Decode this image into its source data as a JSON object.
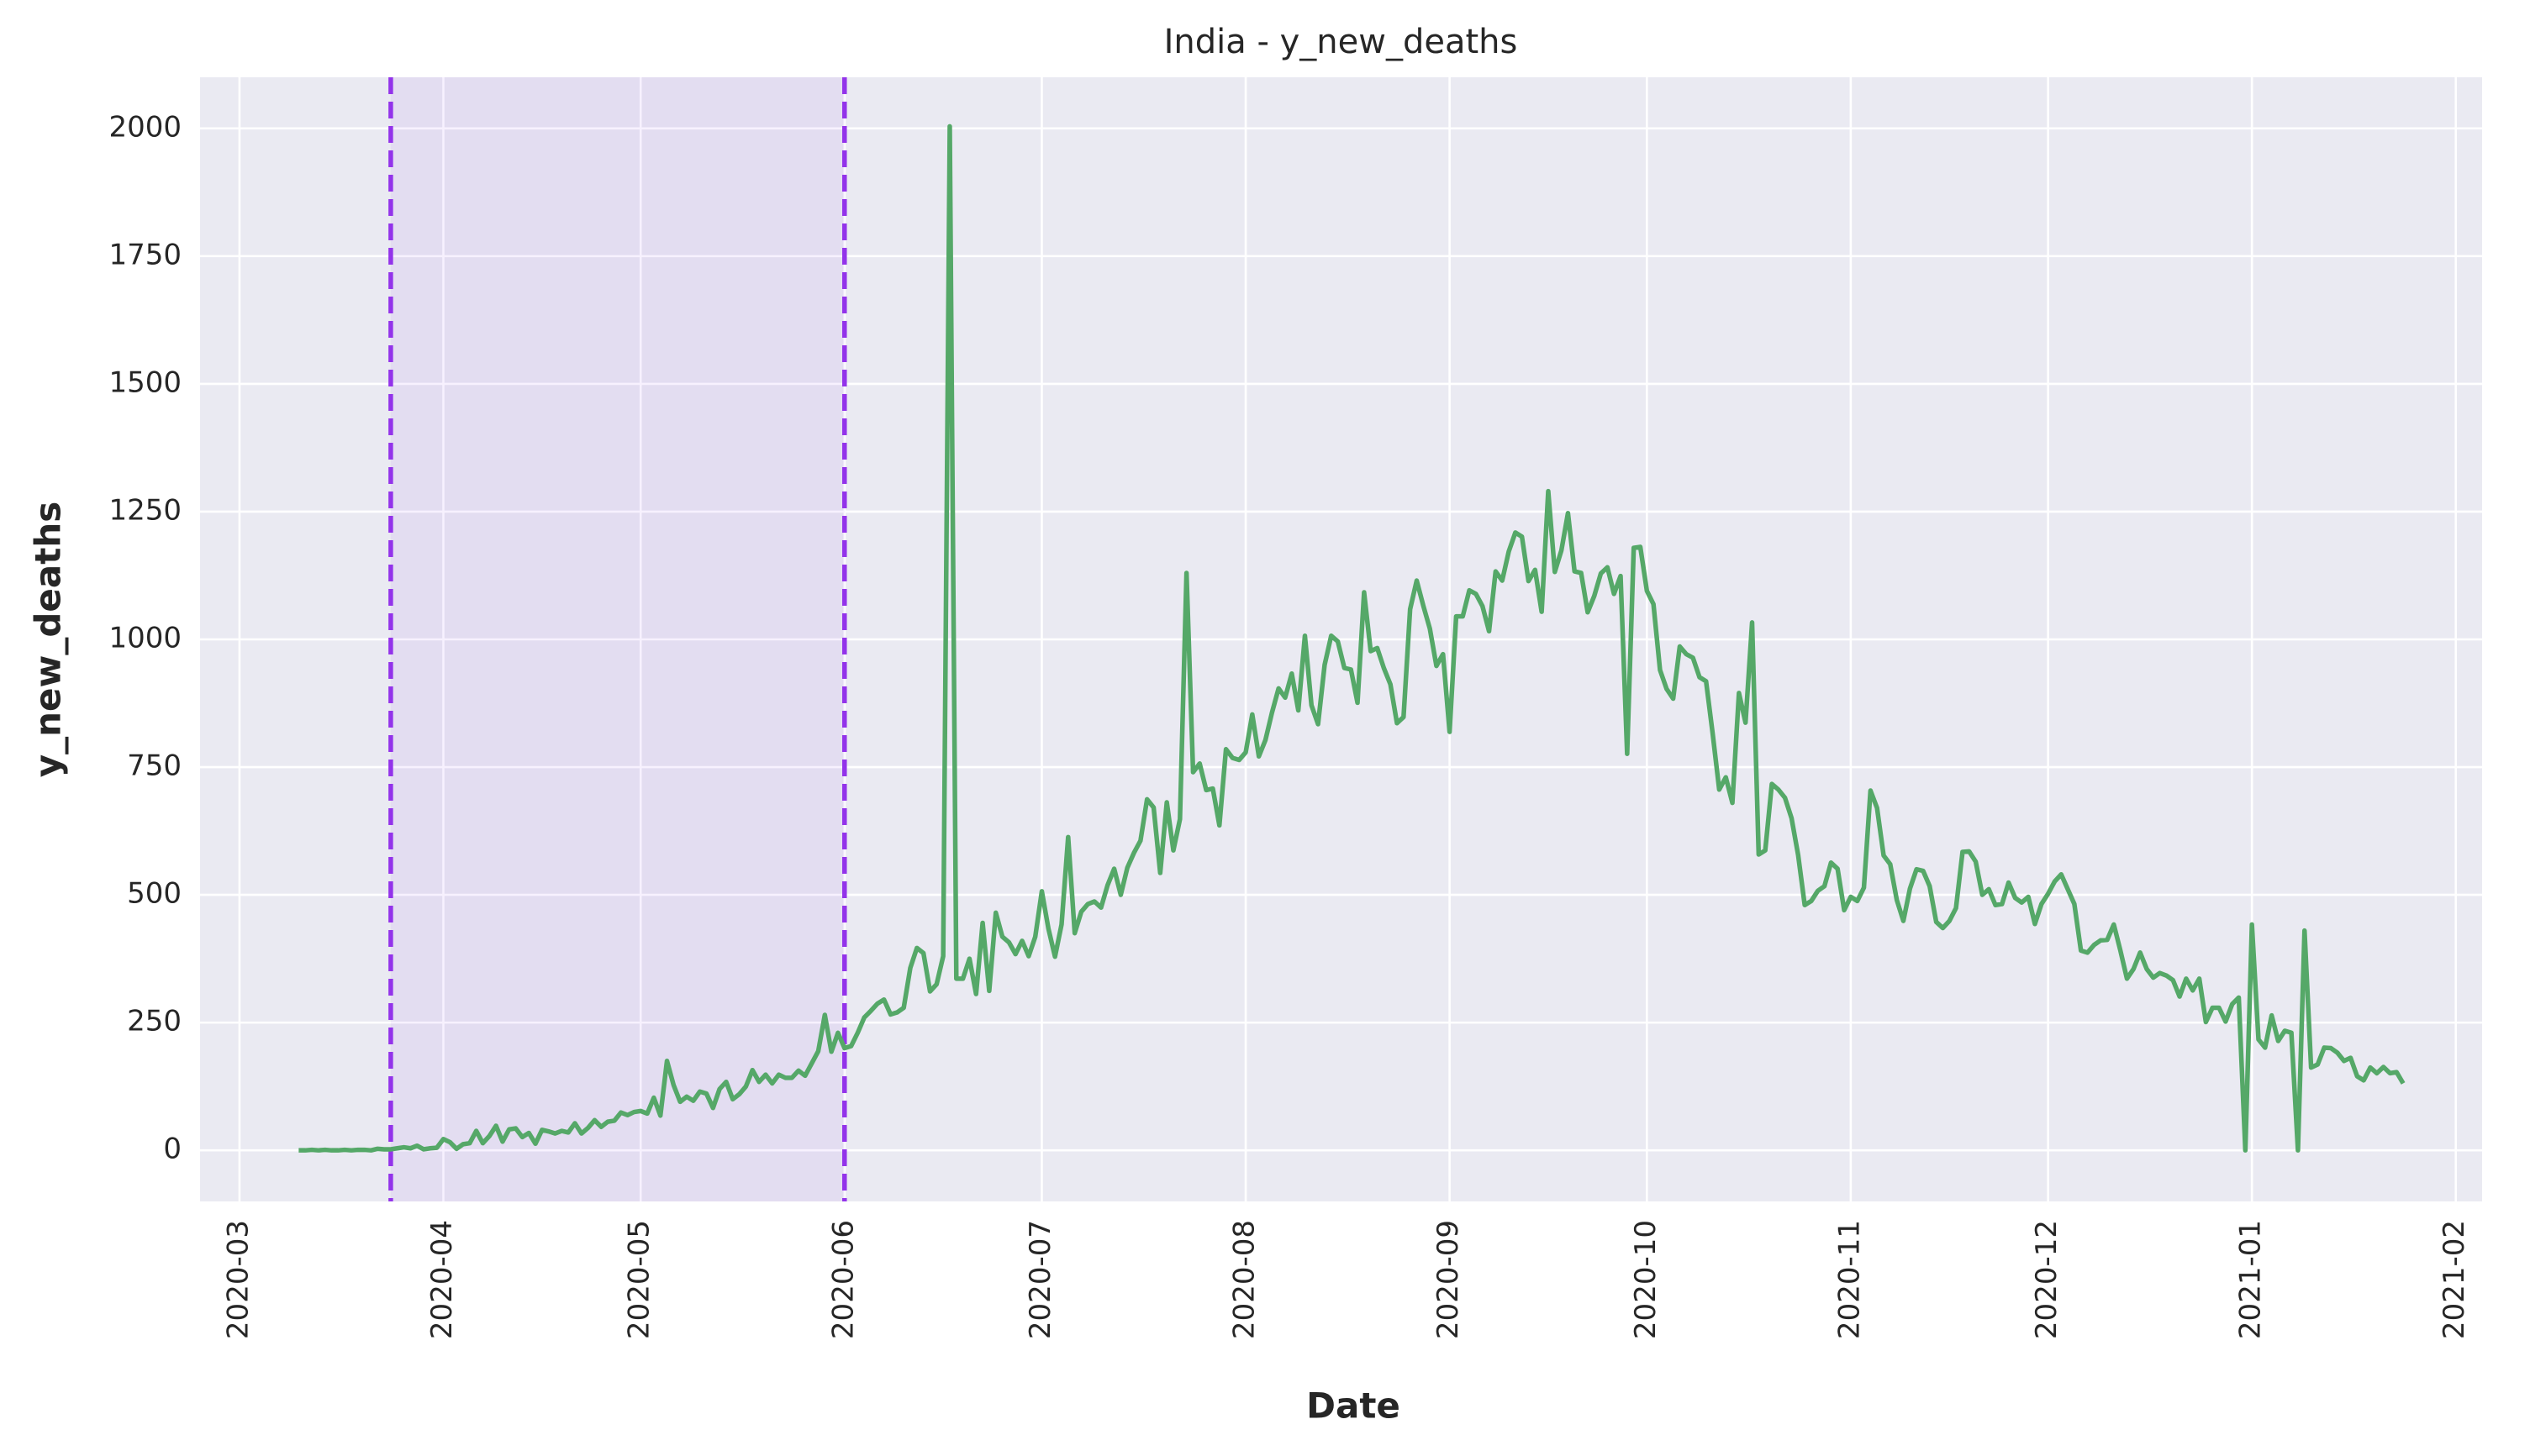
{
  "chart_data": {
    "type": "line",
    "title": "India - y_new_deaths",
    "x_label": "Date",
    "y_label": "y_new_deaths",
    "grid": true,
    "xlim": [
      "2020-02-24",
      "2021-02-05"
    ],
    "ylim": [
      -100,
      2100
    ],
    "xticks": [
      "2020-03",
      "2020-04",
      "2020-05",
      "2020-06",
      "2020-07",
      "2020-08",
      "2020-09",
      "2020-10",
      "2020-11",
      "2020-12",
      "2021-01",
      "2021-02"
    ],
    "yticks": [
      0,
      250,
      500,
      750,
      1000,
      1250,
      1500,
      1750,
      2000
    ],
    "span": {
      "start": "2020-03-24",
      "end": "2020-06-01",
      "color": "#9333ea"
    },
    "x": [
      "2020-03-10",
      "2020-03-11",
      "2020-03-12",
      "2020-03-13",
      "2020-03-14",
      "2020-03-15",
      "2020-03-16",
      "2020-03-17",
      "2020-03-18",
      "2020-03-19",
      "2020-03-20",
      "2020-03-21",
      "2020-03-22",
      "2020-03-23",
      "2020-03-24",
      "2020-03-25",
      "2020-03-26",
      "2020-03-27",
      "2020-03-28",
      "2020-03-29",
      "2020-03-30",
      "2020-03-31",
      "2020-04-01",
      "2020-04-02",
      "2020-04-03",
      "2020-04-04",
      "2020-04-05",
      "2020-04-06",
      "2020-04-07",
      "2020-04-08",
      "2020-04-09",
      "2020-04-10",
      "2020-04-11",
      "2020-04-12",
      "2020-04-13",
      "2020-04-14",
      "2020-04-15",
      "2020-04-16",
      "2020-04-17",
      "2020-04-18",
      "2020-04-19",
      "2020-04-20",
      "2020-04-21",
      "2020-04-22",
      "2020-04-23",
      "2020-04-24",
      "2020-04-25",
      "2020-04-26",
      "2020-04-27",
      "2020-04-28",
      "2020-04-29",
      "2020-04-30",
      "2020-05-01",
      "2020-05-02",
      "2020-05-03",
      "2020-05-04",
      "2020-05-05",
      "2020-05-06",
      "2020-05-07",
      "2020-05-08",
      "2020-05-09",
      "2020-05-10",
      "2020-05-11",
      "2020-05-12",
      "2020-05-13",
      "2020-05-14",
      "2020-05-15",
      "2020-05-16",
      "2020-05-17",
      "2020-05-18",
      "2020-05-19",
      "2020-05-20",
      "2020-05-21",
      "2020-05-22",
      "2020-05-23",
      "2020-05-24",
      "2020-05-25",
      "2020-05-26",
      "2020-05-27",
      "2020-05-28",
      "2020-05-29",
      "2020-05-30",
      "2020-05-31",
      "2020-06-01",
      "2020-06-02",
      "2020-06-03",
      "2020-06-04",
      "2020-06-05",
      "2020-06-06",
      "2020-06-07",
      "2020-06-08",
      "2020-06-09",
      "2020-06-10",
      "2020-06-11",
      "2020-06-12",
      "2020-06-13",
      "2020-06-14",
      "2020-06-15",
      "2020-06-16",
      "2020-06-17",
      "2020-06-18",
      "2020-06-19",
      "2020-06-20",
      "2020-06-21",
      "2020-06-22",
      "2020-06-23",
      "2020-06-24",
      "2020-06-25",
      "2020-06-26",
      "2020-06-27",
      "2020-06-28",
      "2020-06-29",
      "2020-06-30",
      "2020-07-01",
      "2020-07-02",
      "2020-07-03",
      "2020-07-04",
      "2020-07-05",
      "2020-07-06",
      "2020-07-07",
      "2020-07-08",
      "2020-07-09",
      "2020-07-10",
      "2020-07-11",
      "2020-07-12",
      "2020-07-13",
      "2020-07-14",
      "2020-07-15",
      "2020-07-16",
      "2020-07-17",
      "2020-07-18",
      "2020-07-19",
      "2020-07-20",
      "2020-07-21",
      "2020-07-22",
      "2020-07-23",
      "2020-07-24",
      "2020-07-25",
      "2020-07-26",
      "2020-07-27",
      "2020-07-28",
      "2020-07-29",
      "2020-07-30",
      "2020-07-31",
      "2020-08-01",
      "2020-08-02",
      "2020-08-03",
      "2020-08-04",
      "2020-08-05",
      "2020-08-06",
      "2020-08-07",
      "2020-08-08",
      "2020-08-09",
      "2020-08-10",
      "2020-08-11",
      "2020-08-12",
      "2020-08-13",
      "2020-08-14",
      "2020-08-15",
      "2020-08-16",
      "2020-08-17",
      "2020-08-18",
      "2020-08-19",
      "2020-08-20",
      "2020-08-21",
      "2020-08-22",
      "2020-08-23",
      "2020-08-24",
      "2020-08-25",
      "2020-08-26",
      "2020-08-27",
      "2020-08-28",
      "2020-08-29",
      "2020-08-30",
      "2020-08-31",
      "2020-09-01",
      "2020-09-02",
      "2020-09-03",
      "2020-09-04",
      "2020-09-05",
      "2020-09-06",
      "2020-09-07",
      "2020-09-08",
      "2020-09-09",
      "2020-09-10",
      "2020-09-11",
      "2020-09-12",
      "2020-09-13",
      "2020-09-14",
      "2020-09-15",
      "2020-09-16",
      "2020-09-17",
      "2020-09-18",
      "2020-09-19",
      "2020-09-20",
      "2020-09-21",
      "2020-09-22",
      "2020-09-23",
      "2020-09-24",
      "2020-09-25",
      "2020-09-26",
      "2020-09-27",
      "2020-09-28",
      "2020-09-29",
      "2020-09-30",
      "2020-10-01",
      "2020-10-02",
      "2020-10-03",
      "2020-10-04",
      "2020-10-05",
      "2020-10-06",
      "2020-10-07",
      "2020-10-08",
      "2020-10-09",
      "2020-10-10",
      "2020-10-11",
      "2020-10-12",
      "2020-10-13",
      "2020-10-14",
      "2020-10-15",
      "2020-10-16",
      "2020-10-17",
      "2020-10-18",
      "2020-10-19",
      "2020-10-20",
      "2020-10-21",
      "2020-10-22",
      "2020-10-23",
      "2020-10-24",
      "2020-10-25",
      "2020-10-26",
      "2020-10-27",
      "2020-10-28",
      "2020-10-29",
      "2020-10-30",
      "2020-10-31",
      "2020-11-01",
      "2020-11-02",
      "2020-11-03",
      "2020-11-04",
      "2020-11-05",
      "2020-11-06",
      "2020-11-07",
      "2020-11-08",
      "2020-11-09",
      "2020-11-10",
      "2020-11-11",
      "2020-11-12",
      "2020-11-13",
      "2020-11-14",
      "2020-11-15",
      "2020-11-16",
      "2020-11-17",
      "2020-11-18",
      "2020-11-19",
      "2020-11-20",
      "2020-11-21",
      "2020-11-22",
      "2020-11-23",
      "2020-11-24",
      "2020-11-25",
      "2020-11-26",
      "2020-11-27",
      "2020-11-28",
      "2020-11-29",
      "2020-11-30",
      "2020-12-01",
      "2020-12-02",
      "2020-12-03",
      "2020-12-04",
      "2020-12-05",
      "2020-12-06",
      "2020-12-07",
      "2020-12-08",
      "2020-12-09",
      "2020-12-10",
      "2020-12-11",
      "2020-12-12",
      "2020-12-13",
      "2020-12-14",
      "2020-12-15",
      "2020-12-16",
      "2020-12-17",
      "2020-12-18",
      "2020-12-19",
      "2020-12-20",
      "2020-12-21",
      "2020-12-22",
      "2020-12-23",
      "2020-12-24",
      "2020-12-25",
      "2020-12-26",
      "2020-12-27",
      "2020-12-28",
      "2020-12-29",
      "2020-12-30",
      "2020-12-31",
      "2021-01-01",
      "2021-01-02",
      "2021-01-03",
      "2021-01-04",
      "2021-01-05",
      "2021-01-06",
      "2021-01-07",
      "2021-01-08",
      "2021-01-09",
      "2021-01-10",
      "2021-01-11",
      "2021-01-12",
      "2021-01-13",
      "2021-01-14",
      "2021-01-15",
      "2021-01-16",
      "2021-01-17",
      "2021-01-18",
      "2021-01-19",
      "2021-01-20",
      "2021-01-21",
      "2021-01-22",
      "2021-01-23",
      "2021-01-24"
    ],
    "series": [
      {
        "name": "y_new_deaths",
        "color": "#55a868",
        "values": [
          0,
          0,
          1,
          0,
          1,
          0,
          0,
          1,
          0,
          1,
          1,
          0,
          3,
          2,
          2,
          4,
          6,
          4,
          9,
          2,
          4,
          5,
          22,
          16,
          3,
          12,
          14,
          38,
          14,
          28,
          48,
          17,
          41,
          43,
          26,
          34,
          13,
          40,
          37,
          33,
          38,
          35,
          53,
          33,
          44,
          59,
          46,
          56,
          58,
          74,
          69,
          75,
          77,
          72,
          103,
          68,
          175,
          128,
          95,
          105,
          97,
          115,
          111,
          83,
          120,
          134,
          100,
          110,
          125,
          157,
          134,
          148,
          131,
          148,
          142,
          142,
          156,
          146,
          170,
          194,
          265,
          193,
          230,
          200,
          204,
          230,
          260,
          273,
          287,
          295,
          266,
          270,
          279,
          357,
          396,
          386,
          311,
          325,
          380,
          2004,
          336,
          336,
          375,
          306,
          445,
          312,
          465,
          418,
          407,
          384,
          410,
          380,
          418,
          507,
          434,
          379,
          442,
          613,
          425,
          467,
          482,
          487,
          475,
          519,
          551,
          500,
          553,
          582,
          606,
          687,
          671,
          543,
          681,
          587,
          648,
          1130,
          740,
          757,
          705,
          708,
          636,
          785,
          768,
          764,
          779,
          853,
          771,
          803,
          857,
          904,
          886,
          933,
          861,
          1007,
          871,
          834,
          950,
          1007,
          996,
          944,
          941,
          876,
          1092,
          977,
          983,
          944,
          912,
          836,
          848,
          1059,
          1115,
          1066,
          1021,
          948,
          971,
          819,
          1045,
          1045,
          1096,
          1089,
          1065,
          1016,
          1133,
          1115,
          1172,
          1209,
          1201,
          1114,
          1136,
          1054,
          1290,
          1132,
          1174,
          1247,
          1133,
          1130,
          1053,
          1085,
          1129,
          1141,
          1089,
          1124,
          776,
          1179,
          1181,
          1095,
          1069,
          940,
          903,
          884,
          986,
          971,
          964,
          926,
          918,
          816,
          706,
          730,
          680,
          895,
          837,
          1033,
          579,
          587,
          717,
          706,
          690,
          650,
          578,
          480,
          488,
          508,
          517,
          563,
          551,
          470,
          496,
          488,
          514,
          704,
          670,
          577,
          560,
          490,
          449,
          512,
          550,
          547,
          517,
          447,
          435,
          449,
          474,
          584,
          585,
          565,
          500,
          511,
          480,
          482,
          524,
          494,
          485,
          496,
          443,
          482,
          502,
          526,
          540,
          511,
          482,
          391,
          387,
          402,
          411,
          412,
          442,
          391,
          336,
          355,
          387,
          355,
          338,
          347,
          342,
          333,
          301,
          336,
          313,
          336,
          251,
          279,
          279,
          252,
          286,
          299,
          0,
          442,
          217,
          201,
          264,
          214,
          234,
          230,
          0,
          430,
          162,
          168,
          201,
          200,
          191,
          175,
          181,
          145,
          137,
          162,
          151,
          163,
          151,
          153,
          131
        ]
      }
    ]
  }
}
